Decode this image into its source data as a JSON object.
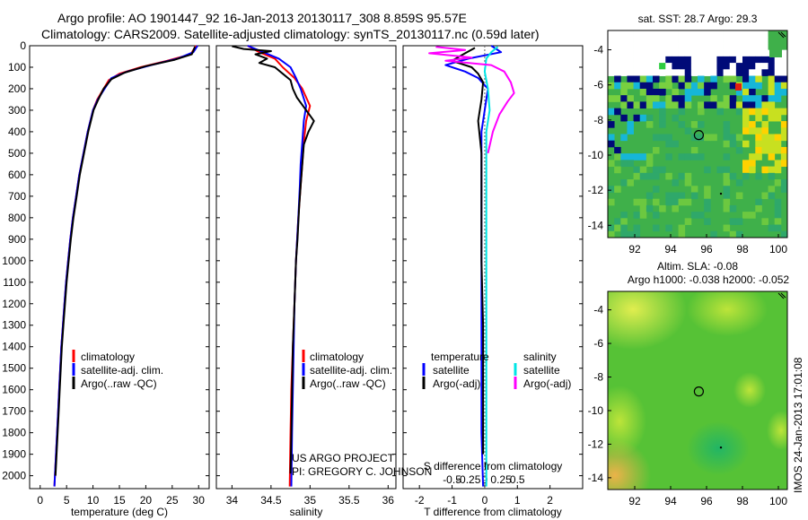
{
  "title_line1": "Argo profile: AO 1901447_92 16-Jan-2013 20130117_308 8.859S 95.57E",
  "title_line2": "Climatology: CARS2009. Satellite-adjusted climatology: synTS_20130117.nc (0.59d later)",
  "side_stamp": "IMOS 24-Jan-2013 17:01:08",
  "colors": {
    "clim": "#ff0000",
    "sat": "#0000ff",
    "argo": "#000000",
    "sal_sat": "#00e5e5",
    "sal_argo": "#ff00ff"
  },
  "chart_data": [
    {
      "id": "temp",
      "type": "line",
      "xlabel": "temperature (deg C)",
      "ylabel": "",
      "xlim": [
        -2,
        32
      ],
      "ylim": [
        2060,
        0
      ],
      "xticks": [
        0,
        5,
        10,
        15,
        20,
        25,
        30
      ],
      "xtick_labels": [
        "0",
        "5",
        "10",
        "15",
        "20",
        "25",
        "30"
      ],
      "yticks": [
        0,
        100,
        200,
        300,
        400,
        500,
        600,
        700,
        800,
        900,
        1000,
        1100,
        1200,
        1300,
        1400,
        1500,
        1600,
        1700,
        1800,
        1900,
        2000
      ],
      "ytick_labels": [
        "0",
        "100",
        "200",
        "300",
        "400",
        "500",
        "600",
        "700",
        "800",
        "900",
        "1000",
        "1100",
        "1200",
        "1300",
        "1400",
        "1500",
        "1600",
        "1700",
        "1800",
        "1900",
        "2000"
      ],
      "legend": [
        "climatology",
        "satellite-adj. clim.",
        "Argo(..raw -QC)"
      ],
      "series": [
        {
          "name": "climatology",
          "color": "clim",
          "points": [
            [
              29.5,
              0
            ],
            [
              28.5,
              40
            ],
            [
              24,
              70
            ],
            [
              19,
              100
            ],
            [
              15,
              130
            ],
            [
              13,
              160
            ],
            [
              12,
              200
            ],
            [
              10.8,
              250
            ],
            [
              10,
              300
            ],
            [
              9,
              400
            ],
            [
              8.2,
              500
            ],
            [
              7.4,
              600
            ],
            [
              6.8,
              700
            ],
            [
              6.2,
              800
            ],
            [
              5.7,
              900
            ],
            [
              5.3,
              1000
            ],
            [
              4.9,
              1100
            ],
            [
              4.6,
              1200
            ],
            [
              4.3,
              1300
            ],
            [
              4.0,
              1400
            ],
            [
              3.8,
              1500
            ],
            [
              3.6,
              1600
            ],
            [
              3.4,
              1700
            ],
            [
              3.2,
              1800
            ],
            [
              3.0,
              1900
            ],
            [
              2.8,
              2000
            ],
            [
              2.7,
              2050
            ]
          ]
        },
        {
          "name": "satellite-adj. clim.",
          "color": "sat",
          "points": [
            [
              29.8,
              0
            ],
            [
              29,
              30
            ],
            [
              26,
              60
            ],
            [
              21,
              90
            ],
            [
              16.5,
              120
            ],
            [
              13.5,
              150
            ],
            [
              12.2,
              200
            ],
            [
              10.9,
              250
            ],
            [
              10,
              300
            ],
            [
              9,
              400
            ],
            [
              8.2,
              500
            ],
            [
              7.4,
              600
            ],
            [
              6.8,
              700
            ],
            [
              6.2,
              800
            ],
            [
              5.7,
              900
            ],
            [
              5.3,
              1000
            ],
            [
              4.9,
              1100
            ],
            [
              4.6,
              1200
            ],
            [
              4.3,
              1300
            ],
            [
              4.0,
              1400
            ],
            [
              3.8,
              1500
            ],
            [
              3.6,
              1600
            ],
            [
              3.4,
              1700
            ],
            [
              3.2,
              1800
            ],
            [
              3.0,
              1900
            ],
            [
              2.8,
              2000
            ],
            [
              2.7,
              2050
            ]
          ]
        },
        {
          "name": "Argo(..raw -QC)",
          "color": "argo",
          "points": [
            [
              29.3,
              5
            ],
            [
              28.7,
              40
            ],
            [
              25.5,
              65
            ],
            [
              20,
              95
            ],
            [
              16,
              125
            ],
            [
              13.5,
              155
            ],
            [
              12,
              200
            ],
            [
              11,
              250
            ],
            [
              10.1,
              300
            ],
            [
              9.1,
              400
            ],
            [
              8.3,
              500
            ],
            [
              7.5,
              600
            ],
            [
              6.9,
              700
            ],
            [
              6.3,
              800
            ],
            [
              5.8,
              900
            ],
            [
              5.4,
              1000
            ],
            [
              5.0,
              1100
            ],
            [
              4.7,
              1200
            ],
            [
              4.4,
              1300
            ],
            [
              4.1,
              1400
            ],
            [
              3.9,
              1500
            ],
            [
              3.7,
              1600
            ],
            [
              3.5,
              1700
            ],
            [
              3.3,
              1800
            ],
            [
              3.1,
              1900
            ],
            [
              2.9,
              2000
            ]
          ]
        }
      ]
    },
    {
      "id": "sal",
      "type": "line",
      "xlabel": "salinity",
      "xlim": [
        33.8,
        36.1
      ],
      "ylim": [
        2060,
        0
      ],
      "xticks": [
        34,
        34.5,
        35,
        35.5,
        36
      ],
      "xtick_labels": [
        "34",
        "34.5",
        "35",
        "35.5",
        "36"
      ],
      "legend": [
        "climatology",
        "satellite-adj. clim.",
        "Argo(..raw -QC)"
      ],
      "annotation_1": "US ARGO PROJECT",
      "annotation_2": "PI: GREGORY C. JOHNSON",
      "series": [
        {
          "name": "climatology",
          "color": "clim",
          "points": [
            [
              34.2,
              0
            ],
            [
              34.35,
              30
            ],
            [
              34.55,
              60
            ],
            [
              34.65,
              100
            ],
            [
              34.8,
              150
            ],
            [
              34.9,
              200
            ],
            [
              35.0,
              280
            ],
            [
              34.95,
              350
            ],
            [
              34.92,
              450
            ],
            [
              34.9,
              550
            ],
            [
              34.88,
              650
            ],
            [
              34.85,
              800
            ],
            [
              34.82,
              1000
            ],
            [
              34.8,
              1200
            ],
            [
              34.78,
              1400
            ],
            [
              34.76,
              1600
            ],
            [
              34.75,
              1800
            ],
            [
              34.74,
              2050
            ]
          ]
        },
        {
          "name": "satellite-adj. clim.",
          "color": "sat",
          "points": [
            [
              34.2,
              0
            ],
            [
              34.4,
              30
            ],
            [
              34.6,
              60
            ],
            [
              34.75,
              100
            ],
            [
              34.82,
              150
            ],
            [
              34.88,
              200
            ],
            [
              34.95,
              280
            ],
            [
              34.92,
              350
            ],
            [
              34.9,
              450
            ],
            [
              34.88,
              550
            ],
            [
              34.87,
              650
            ],
            [
              34.85,
              800
            ],
            [
              34.82,
              1000
            ],
            [
              34.8,
              1200
            ],
            [
              34.79,
              1400
            ],
            [
              34.78,
              1600
            ],
            [
              34.77,
              1800
            ],
            [
              34.76,
              2050
            ]
          ]
        },
        {
          "name": "Argo(..raw -QC)",
          "color": "argo",
          "points": [
            [
              34.0,
              2
            ],
            [
              34.15,
              15
            ],
            [
              34.5,
              25
            ],
            [
              34.3,
              40
            ],
            [
              34.45,
              60
            ],
            [
              34.35,
              80
            ],
            [
              34.55,
              100
            ],
            [
              34.65,
              130
            ],
            [
              34.75,
              160
            ],
            [
              34.78,
              200
            ],
            [
              34.83,
              240
            ],
            [
              34.95,
              300
            ],
            [
              35.05,
              350
            ],
            [
              34.98,
              400
            ],
            [
              34.92,
              460
            ],
            [
              34.9,
              550
            ],
            [
              34.88,
              650
            ],
            [
              34.86,
              750
            ],
            [
              34.84,
              900
            ],
            [
              34.82,
              1000
            ],
            [
              34.8,
              1200
            ],
            [
              34.78,
              1400
            ],
            [
              34.77,
              1600
            ],
            [
              34.76,
              1800
            ],
            [
              34.75,
              1990
            ]
          ]
        }
      ]
    },
    {
      "id": "diff",
      "type": "line",
      "xlabel": "T difference from climatology",
      "xlabel_top": "S difference from climatology",
      "xlim": [
        -2.5,
        3
      ],
      "ylim": [
        2060,
        0
      ],
      "xticks": [
        -2,
        -1,
        0,
        1,
        2
      ],
      "xtick_labels": [
        "-2",
        "-1",
        "0",
        "1",
        "2"
      ],
      "top_ticks": [
        -0.5,
        -0.25,
        0,
        0.25,
        0.5
      ],
      "top_tick_labels": [
        "-0.5",
        "-0.25",
        "0",
        "0.25",
        "0.5"
      ],
      "legend_t_title": "temperature",
      "legend_s_title": "salinity",
      "legend_t": [
        "satellite",
        "Argo(-adj)"
      ],
      "legend_s": [
        "satellite",
        "Argo(-adj)"
      ],
      "series": [
        {
          "name": "T satellite",
          "color": "sat",
          "points": [
            [
              0.2,
              0
            ],
            [
              0.5,
              30
            ],
            [
              -0.5,
              60
            ],
            [
              -1.2,
              90
            ],
            [
              -0.6,
              120
            ],
            [
              -0.2,
              150
            ],
            [
              0.1,
              200
            ],
            [
              0.0,
              300
            ],
            [
              -0.1,
              400
            ],
            [
              -0.1,
              500
            ],
            [
              -0.1,
              600
            ],
            [
              -0.1,
              800
            ],
            [
              -0.1,
              1000
            ],
            [
              -0.1,
              1200
            ],
            [
              -0.1,
              1400
            ],
            [
              -0.1,
              1600
            ],
            [
              -0.1,
              1800
            ],
            [
              -0.05,
              2050
            ]
          ]
        },
        {
          "name": "T Argo(-adj)",
          "color": "argo",
          "points": [
            [
              -0.3,
              10
            ],
            [
              -0.6,
              35
            ],
            [
              -1.0,
              70
            ],
            [
              -0.4,
              100
            ],
            [
              -0.2,
              130
            ],
            [
              -0.05,
              170
            ],
            [
              -0.1,
              250
            ],
            [
              -0.2,
              350
            ],
            [
              -0.1,
              500
            ],
            [
              -0.1,
              700
            ],
            [
              -0.1,
              1000
            ],
            [
              -0.05,
              1300
            ],
            [
              -0.05,
              1600
            ],
            [
              -0.05,
              1900
            ]
          ]
        },
        {
          "name": "S satellite",
          "color": "sal_sat",
          "points": [
            [
              0.4,
              5
            ],
            [
              0.2,
              30
            ],
            [
              0.05,
              60
            ],
            [
              0.0,
              120
            ],
            [
              0.1,
              200
            ],
            [
              0.15,
              300
            ],
            [
              0.05,
              400
            ],
            [
              0.05,
              600
            ],
            [
              0.05,
              800
            ],
            [
              0.05,
              1000
            ],
            [
              0.05,
              1200
            ],
            [
              0.05,
              1400
            ],
            [
              0.05,
              1600
            ],
            [
              0.05,
              1800
            ],
            [
              0.05,
              2050
            ]
          ]
        },
        {
          "name": "S Argo(-adj)",
          "color": "sal_argo",
          "points": [
            [
              -1.5,
              5
            ],
            [
              -0.6,
              20
            ],
            [
              -1.7,
              35
            ],
            [
              -0.4,
              55
            ],
            [
              -1.2,
              70
            ],
            [
              0.2,
              90
            ],
            [
              0.6,
              120
            ],
            [
              0.8,
              170
            ],
            [
              0.9,
              220
            ],
            [
              0.7,
              260
            ],
            [
              0.45,
              320
            ],
            [
              0.25,
              400
            ],
            [
              0.1,
              500
            ]
          ]
        }
      ]
    },
    {
      "id": "map_sst",
      "type": "heatmap",
      "title": "sat. SST: 28.7 Argo: 29.3",
      "xlim": [
        90.5,
        100.5
      ],
      "ylim": [
        -14.7,
        -2.9
      ],
      "xticks": [
        92,
        94,
        96,
        98,
        100
      ],
      "xtick_labels": [
        "92",
        "94",
        "96",
        "98",
        "100"
      ],
      "yticks": [
        -4,
        -6,
        -8,
        -10,
        -12,
        -14
      ],
      "ytick_labels": [
        "-4",
        "-6",
        "-8",
        "-10",
        "-12",
        "-14"
      ],
      "profile": [
        95.57,
        -8.859
      ],
      "secondary_point": [
        96.8,
        -12.2
      ]
    },
    {
      "id": "map_sla",
      "type": "heatmap",
      "title_line1": "Altim. SLA: -0.08",
      "title_line2": "Argo h1000: -0.038 h2000: -0.052",
      "xlim": [
        90.5,
        100.5
      ],
      "ylim": [
        -14.7,
        -2.9
      ],
      "xticks": [
        92,
        94,
        96,
        98,
        100
      ],
      "xtick_labels": [
        "92",
        "94",
        "96",
        "98",
        "100"
      ],
      "yticks": [
        -4,
        -6,
        -8,
        -10,
        -12,
        -14
      ],
      "ytick_labels": [
        "-4",
        "-6",
        "-8",
        "-10",
        "-12",
        "-14"
      ],
      "profile": [
        95.57,
        -8.859
      ],
      "secondary_point": [
        96.8,
        -12.2
      ]
    }
  ]
}
